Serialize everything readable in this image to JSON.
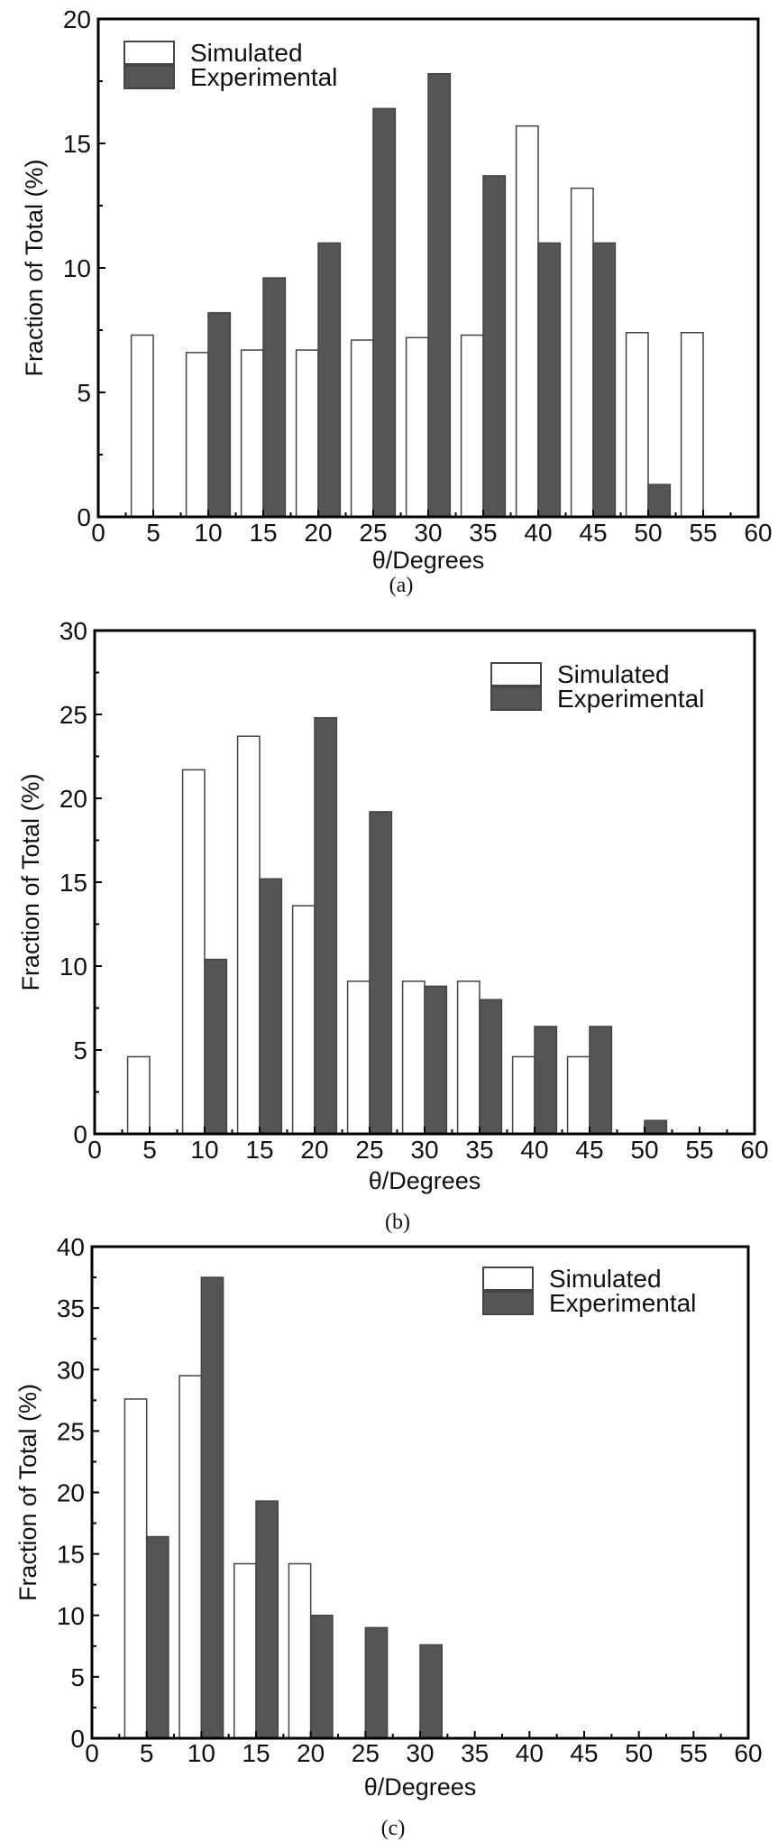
{
  "chart_data": [
    {
      "type": "bar",
      "panel": "(a)",
      "xlabel": "θ/Degrees",
      "ylabel": "Fraction of Total (%)",
      "xlim": [
        0,
        60
      ],
      "ylim": [
        0,
        20
      ],
      "xticks": [
        0,
        5,
        10,
        15,
        20,
        25,
        30,
        35,
        40,
        45,
        50,
        55,
        60
      ],
      "yticks": [
        0,
        5,
        10,
        15,
        20
      ],
      "legend_position": "top-left",
      "categories": [
        5,
        10,
        15,
        20,
        25,
        30,
        35,
        40,
        45,
        50,
        55
      ],
      "series": [
        {
          "name": "Simulated",
          "color": "#ffffff",
          "values": [
            7.3,
            6.6,
            6.7,
            6.7,
            7.1,
            7.2,
            7.3,
            15.7,
            13.2,
            7.4,
            7.4
          ]
        },
        {
          "name": "Experimental",
          "color": "#555555",
          "values": [
            0,
            8.2,
            9.6,
            11.0,
            16.4,
            17.8,
            13.7,
            11.0,
            11.0,
            1.3,
            0
          ]
        }
      ]
    },
    {
      "type": "bar",
      "panel": "(b)",
      "xlabel": "θ/Degrees",
      "ylabel": "Fraction of Total (%)",
      "xlim": [
        0,
        60
      ],
      "ylim": [
        0,
        30
      ],
      "xticks": [
        0,
        5,
        10,
        15,
        20,
        25,
        30,
        35,
        40,
        45,
        50,
        55,
        60
      ],
      "yticks": [
        0,
        5,
        10,
        15,
        20,
        25,
        30
      ],
      "legend_position": "top-right",
      "categories": [
        5,
        10,
        15,
        20,
        25,
        30,
        35,
        40,
        45,
        50,
        55
      ],
      "series": [
        {
          "name": "Simulated",
          "color": "#ffffff",
          "values": [
            4.6,
            21.7,
            23.7,
            13.6,
            9.1,
            9.1,
            9.1,
            4.6,
            4.6,
            0,
            0
          ]
        },
        {
          "name": "Experimental",
          "color": "#555555",
          "values": [
            0,
            10.4,
            15.2,
            24.8,
            19.2,
            8.8,
            8.0,
            6.4,
            6.4,
            0.8,
            0
          ]
        }
      ]
    },
    {
      "type": "bar",
      "panel": "(c)",
      "xlabel": "θ/Degrees",
      "ylabel": "Fraction of Total (%)",
      "xlim": [
        0,
        60
      ],
      "ylim": [
        0,
        40
      ],
      "xticks": [
        0,
        5,
        10,
        15,
        20,
        25,
        30,
        35,
        40,
        45,
        50,
        55,
        60
      ],
      "yticks": [
        0,
        5,
        10,
        15,
        20,
        25,
        30,
        35,
        40
      ],
      "legend_position": "top-right",
      "categories": [
        5,
        10,
        15,
        20,
        25,
        30,
        35,
        40,
        45,
        50,
        55
      ],
      "series": [
        {
          "name": "Simulated",
          "color": "#ffffff",
          "values": [
            27.6,
            29.5,
            14.2,
            14.2,
            0,
            0,
            0,
            0,
            0,
            0,
            0
          ]
        },
        {
          "name": "Experimental",
          "color": "#555555",
          "values": [
            16.4,
            37.5,
            19.3,
            10.0,
            9.0,
            7.6,
            0,
            0,
            0,
            0,
            0
          ]
        }
      ]
    }
  ]
}
